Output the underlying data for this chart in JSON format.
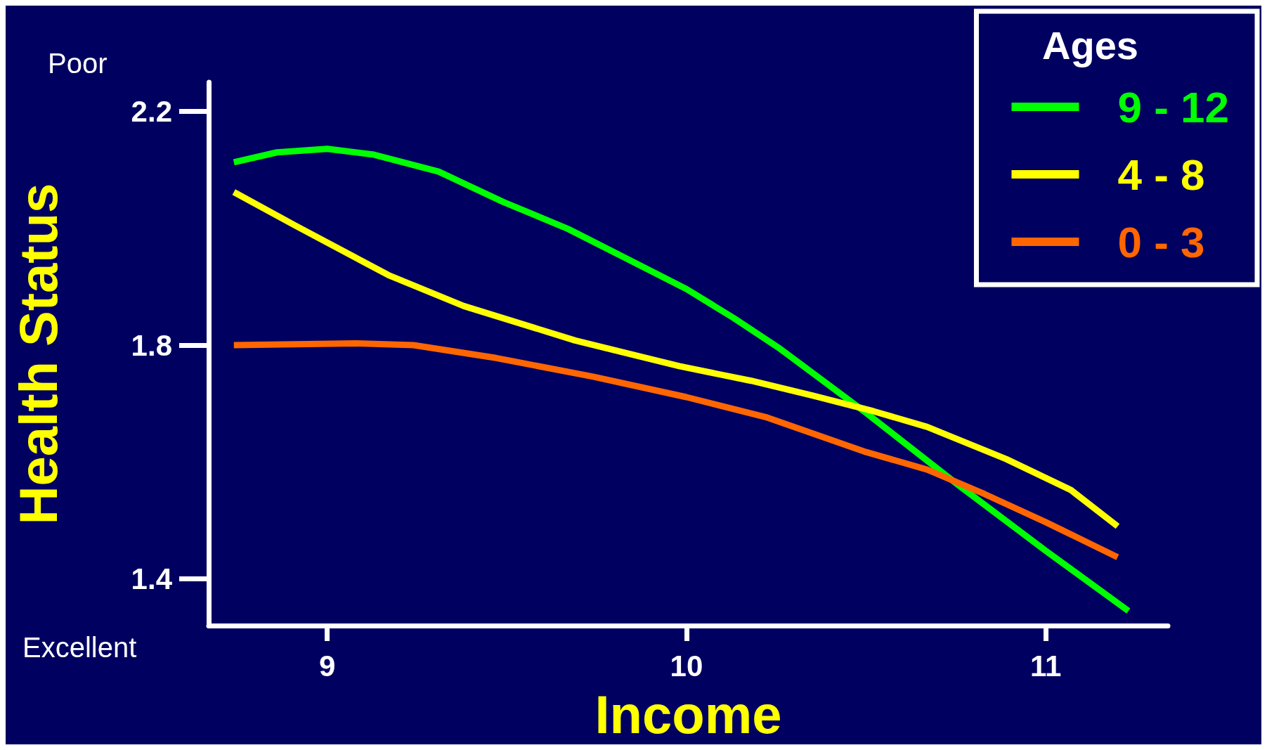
{
  "chart_data": {
    "type": "line",
    "xlabel": "Income",
    "ylabel": "Health Status",
    "legend_title": "Ages",
    "annotations": [
      "Poor",
      "Excellent"
    ],
    "xlim": [
      8.67,
      11.34
    ],
    "ylim": [
      1.32,
      2.25
    ],
    "xticks": [
      9,
      10,
      11
    ],
    "yticks": [
      1.4,
      1.8,
      2.2
    ],
    "grid": false,
    "legend": "top right",
    "marker": "none",
    "line_style": "solid",
    "series": [
      {
        "name": "9 - 12",
        "color": "#00ff00",
        "x": [
          8.74,
          8.86,
          9.0,
          9.13,
          9.31,
          9.49,
          9.67,
          9.85,
          10.0,
          10.13,
          10.26,
          10.5,
          10.76,
          11.0,
          11.23
        ],
        "values": [
          2.113,
          2.13,
          2.136,
          2.126,
          2.097,
          2.045,
          1.999,
          1.943,
          1.896,
          1.847,
          1.794,
          1.684,
          1.559,
          1.448,
          1.345
        ]
      },
      {
        "name": "4 - 8",
        "color": "#ffff00",
        "x": [
          8.74,
          8.91,
          9.17,
          9.38,
          9.69,
          9.98,
          10.18,
          10.35,
          10.52,
          10.67,
          10.89,
          11.07,
          11.2
        ],
        "values": [
          2.062,
          2.005,
          1.92,
          1.867,
          1.808,
          1.764,
          1.739,
          1.714,
          1.687,
          1.66,
          1.605,
          1.552,
          1.49
        ]
      },
      {
        "name": "0 - 3",
        "color": "#ff6600",
        "x": [
          8.74,
          9.08,
          9.24,
          9.47,
          9.74,
          10.0,
          10.22,
          10.5,
          10.67,
          10.83,
          11.0,
          11.2
        ],
        "values": [
          1.8,
          1.803,
          1.8,
          1.778,
          1.746,
          1.711,
          1.677,
          1.617,
          1.587,
          1.545,
          1.497,
          1.437
        ]
      }
    ]
  }
}
